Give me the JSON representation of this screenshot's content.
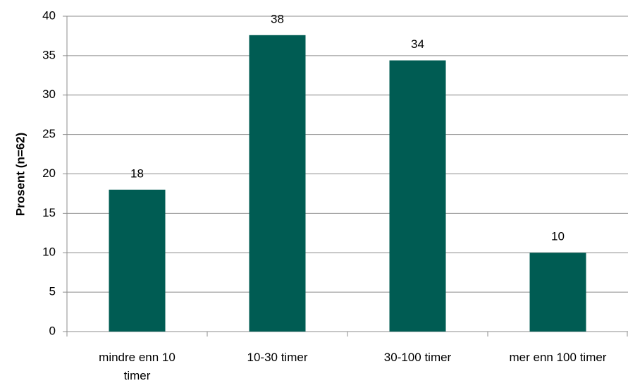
{
  "chart_data": {
    "type": "bar",
    "y_label": "Prosent (n=62)",
    "categories": [
      "mindre enn 10 timer",
      "10-30 timer",
      "30-100 timer",
      "mer enn 100 timer"
    ],
    "values": [
      18,
      37.6,
      34.4,
      10
    ],
    "value_labels": [
      "18",
      "38",
      "34",
      "10"
    ],
    "color": "#005c53",
    "ylim": [
      0,
      40
    ],
    "yticks": [
      0,
      5,
      10,
      15,
      20,
      25,
      30,
      35,
      40
    ],
    "grid": true
  }
}
